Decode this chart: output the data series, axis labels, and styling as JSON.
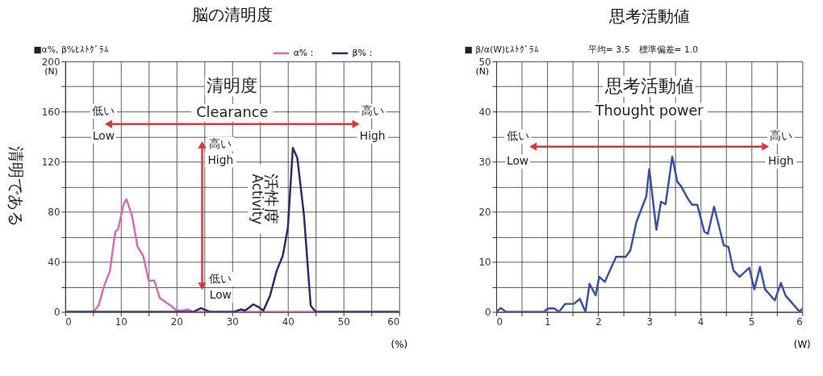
{
  "chart_data": [
    {
      "type": "line",
      "title": "脳の清明度",
      "subtitle": "■α%, β%ﾋｽﾄｸﾞﾗﾑ",
      "xlabel": "(%)",
      "ylabel": "(N)",
      "xlim": [
        0,
        60
      ],
      "ylim": [
        0,
        200
      ],
      "xticks": [
        0,
        {
          "value": 5,
          "label": null
        },
        10,
        {
          "value": 15,
          "label": null
        },
        20,
        {
          "value": 25,
          "label": null
        },
        30,
        {
          "value": 35,
          "label": null
        },
        40,
        {
          "value": 45,
          "label": null
        },
        50,
        {
          "value": 55,
          "label": null
        },
        60
      ],
      "yticks": [
        0,
        {
          "value": 20,
          "label": null
        },
        40,
        {
          "value": 60,
          "label": null
        },
        80,
        {
          "value": 100,
          "label": null
        },
        120,
        {
          "value": 140,
          "label": null
        },
        160,
        {
          "value": 180,
          "label": null
        },
        200
      ],
      "grid": true,
      "legend": "top right",
      "series": [
        {
          "name": "α%：",
          "color": "#d56bb0",
          "x": [
            0,
            5,
            6,
            7,
            8,
            9,
            9.5,
            10.5,
            11,
            12,
            13,
            14,
            15,
            16,
            17,
            18,
            19,
            20,
            21,
            22,
            23,
            60
          ],
          "values": [
            0,
            0,
            5,
            21,
            32,
            64,
            66,
            86,
            90,
            77,
            52,
            45,
            25,
            25,
            11,
            8,
            5,
            1,
            1,
            2,
            0,
            0
          ]
        },
        {
          "name": "β%：",
          "color": "#2a2a6e",
          "x": [
            0,
            23,
            24.4,
            26,
            30.2,
            31.6,
            32.3,
            33.8,
            34.7,
            35.6,
            36.8,
            38,
            39.1,
            40,
            40.9,
            41.7,
            42.9,
            44.1,
            45,
            60
          ],
          "values": [
            0,
            0,
            3,
            0,
            0,
            2,
            1,
            6,
            4,
            1,
            13,
            33,
            45,
            67,
            131,
            123,
            77,
            5,
            0,
            0
          ]
        }
      ],
      "annotations": [
        "清明である",
        "清明度",
        "Clearance",
        "低い",
        "Low",
        "高い",
        "High",
        "高い",
        "High",
        "活性度",
        "Activity",
        "低い",
        "Low"
      ]
    },
    {
      "type": "line",
      "title": "思考活動値",
      "subtitle": "■ β/α(W)ﾋｽﾄｸﾞﾗﾑ",
      "xlabel": "(W)",
      "ylabel": "(N)",
      "xlim": [
        0,
        6
      ],
      "ylim": [
        0,
        50
      ],
      "xticks": [
        0,
        {
          "value": 0.5,
          "label": null
        },
        1,
        {
          "value": 1.5,
          "label": null
        },
        2,
        {
          "value": 2.5,
          "label": null
        },
        3,
        {
          "value": 3.5,
          "label": null
        },
        4,
        {
          "value": 4.5,
          "label": null
        },
        5,
        {
          "value": 5.5,
          "label": null
        },
        6
      ],
      "yticks": [
        0,
        {
          "value": 5,
          "label": null
        },
        10,
        {
          "value": 15,
          "label": null
        },
        20,
        {
          "value": 25,
          "label": null
        },
        30,
        {
          "value": 35,
          "label": null
        },
        40,
        {
          "value": 45,
          "label": null
        },
        50
      ],
      "grid": true,
      "series": [
        {
          "color": "#3a50a6",
          "x": [
            0,
            0.09,
            0.19,
            0.93,
            1.02,
            1.14,
            1.23,
            1.35,
            1.52,
            1.64,
            1.75,
            1.83,
            1.95,
            2.02,
            2.13,
            2.35,
            2.54,
            2.63,
            2.75,
            2.94,
            3.0,
            3.14,
            3.23,
            3.32,
            3.45,
            3.55,
            3.63,
            3.75,
            3.84,
            3.94,
            4.08,
            4.15,
            4.27,
            4.46,
            4.55,
            4.65,
            4.77,
            4.96,
            5.06,
            5.17,
            5.27,
            5.46,
            5.58,
            5.67,
            5.95,
            6.0
          ],
          "values": [
            0,
            0.8,
            0,
            0,
            0.7,
            0.7,
            0,
            1.6,
            1.6,
            2.6,
            0,
            5.6,
            3.3,
            7,
            6,
            11,
            11,
            12.3,
            18,
            23,
            28.5,
            16.4,
            22,
            21.5,
            31,
            26,
            25,
            22.7,
            21.4,
            21.4,
            16,
            15.6,
            21,
            13.3,
            13,
            8.3,
            7,
            8.8,
            4.5,
            9,
            4.5,
            2.3,
            5.8,
            3.3,
            0,
            0.7
          ]
        }
      ],
      "annotations": [
        "平均= 3.5　標準偏差= 1.0",
        "思考活動値",
        "Thought power",
        "低い",
        "Low",
        "高い",
        "High"
      ]
    }
  ]
}
